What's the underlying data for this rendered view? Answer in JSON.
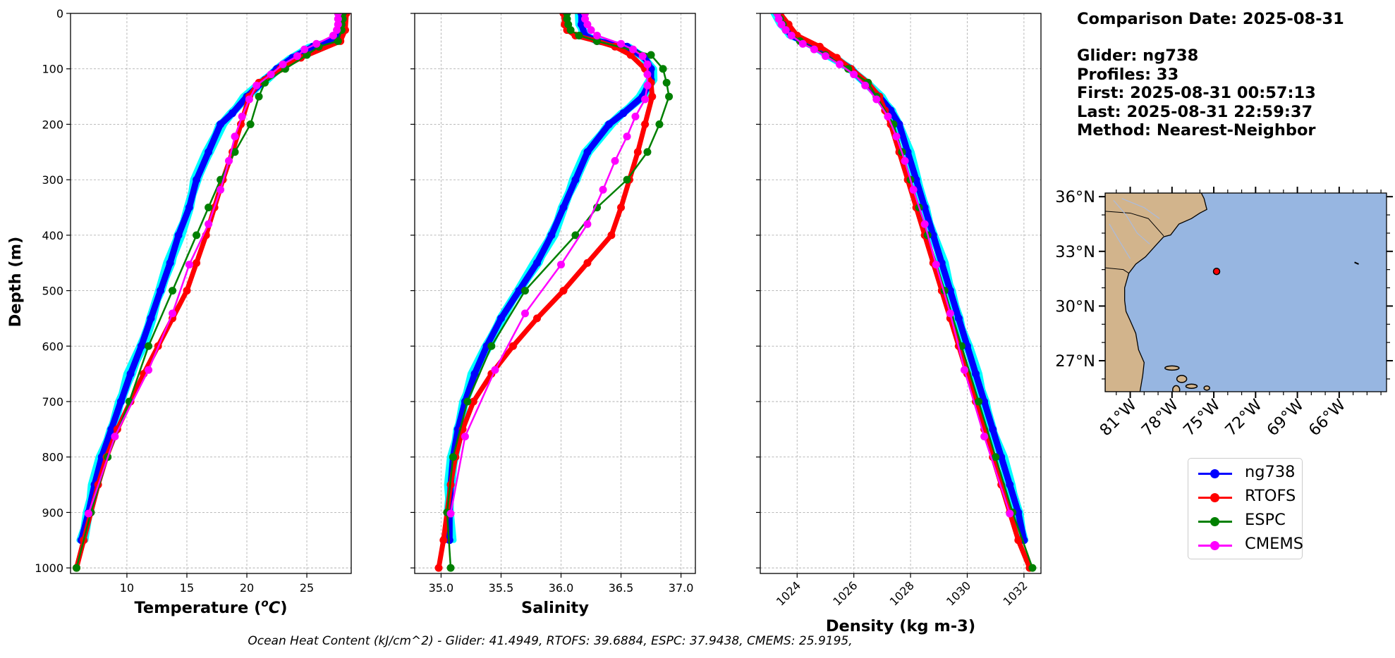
{
  "info": {
    "comparison_date": "Comparison Date: 2025-08-31",
    "glider": "Glider: ng738",
    "profiles": "Profiles: 33",
    "first": "First: 2025-08-31 00:57:13",
    "last": "Last: 2025-08-31 22:59:37",
    "method": "Method: Nearest-Neighbor"
  },
  "footer": "Ocean Heat Content (kJ/cm^2) - Glider: 41.4949,  RTOFS: 39.6884,  ESPC: 37.9438,  CMEMS: 25.9195,",
  "colors": {
    "glider": "#0000ff",
    "glider_individual": "#00ffff",
    "rtofs": "#ff0000",
    "espc": "#008000",
    "cmems": "#ff00ff",
    "land": "#d2b48c",
    "ocean": "#97b6e1",
    "river": "#aabbdd"
  },
  "legend": [
    {
      "name": "ng738",
      "color": "#0000ff"
    },
    {
      "name": "RTOFS",
      "color": "#ff0000"
    },
    {
      "name": "ESPC",
      "color": "#008000"
    },
    {
      "name": "CMEMS",
      "color": "#ff00ff"
    }
  ],
  "chart_data": [
    {
      "type": "line",
      "xlabel": "Temperature (°C)",
      "ylabel": "Depth (m)",
      "xlim": [
        5.3,
        28.7
      ],
      "ylim": [
        1010,
        0
      ],
      "xticks": [
        10,
        15,
        20,
        25
      ],
      "yticks": [
        0,
        100,
        200,
        300,
        400,
        500,
        600,
        700,
        800,
        900,
        1000
      ],
      "grid": true,
      "series": [
        {
          "name": "ng738",
          "depth": [
            0,
            20,
            40,
            50,
            60,
            80,
            100,
            120,
            150,
            180,
            200,
            250,
            300,
            350,
            400,
            450,
            500,
            550,
            600,
            650,
            700,
            750,
            800,
            850,
            900,
            950
          ],
          "values": [
            28.0,
            27.9,
            27.6,
            27.0,
            25.5,
            23.8,
            22.5,
            21.5,
            20.0,
            18.8,
            17.8,
            16.8,
            15.8,
            15.2,
            14.3,
            13.6,
            12.8,
            12.0,
            11.2,
            10.3,
            9.5,
            8.7,
            7.9,
            7.3,
            6.8,
            6.2
          ]
        },
        {
          "name": "RTOFS",
          "depth": [
            0,
            30,
            50,
            80,
            100,
            125,
            150,
            200,
            250,
            300,
            350,
            400,
            450,
            500,
            550,
            600,
            650,
            700,
            750,
            800,
            850,
            900,
            950,
            1000
          ],
          "values": [
            28.3,
            28.2,
            27.8,
            24.5,
            22.8,
            21.0,
            20.2,
            19.5,
            18.8,
            18.0,
            17.3,
            16.6,
            15.8,
            15.0,
            13.8,
            12.6,
            11.4,
            10.3,
            9.2,
            8.3,
            7.6,
            7.0,
            6.4,
            5.8
          ]
        },
        {
          "name": "ESPC",
          "depth": [
            0,
            10,
            20,
            30,
            50,
            60,
            75,
            100,
            125,
            150,
            200,
            250,
            300,
            350,
            400,
            500,
            600,
            700,
            800,
            900,
            1000
          ],
          "values": [
            28.0,
            28.0,
            27.9,
            27.9,
            27.6,
            26.0,
            25.0,
            23.2,
            21.5,
            21.0,
            20.3,
            19.0,
            17.8,
            16.8,
            15.8,
            13.8,
            11.8,
            10.2,
            8.4,
            7.0,
            5.8
          ]
        },
        {
          "name": "CMEMS",
          "depth": [
            0,
            10,
            20,
            30,
            40,
            55,
            65,
            77,
            92,
            110,
            130,
            155,
            186,
            222,
            266,
            318,
            380,
            453,
            541,
            643,
            763,
            902
          ],
          "values": [
            27.6,
            27.6,
            27.6,
            27.5,
            27.2,
            25.8,
            24.8,
            24.2,
            23.0,
            22.0,
            20.8,
            20.2,
            19.6,
            19.0,
            18.5,
            17.8,
            16.8,
            15.2,
            13.8,
            11.8,
            9.0,
            6.8
          ]
        }
      ]
    },
    {
      "type": "line",
      "xlabel": "Salinity",
      "xlim": [
        34.78,
        37.12
      ],
      "ylim": [
        1010,
        0
      ],
      "xticks": [
        35.0,
        35.5,
        36.0,
        36.5,
        37.0
      ],
      "grid": true,
      "series": [
        {
          "name": "ng738",
          "depth": [
            0,
            20,
            40,
            50,
            60,
            80,
            100,
            120,
            150,
            180,
            200,
            250,
            300,
            350,
            400,
            450,
            500,
            550,
            600,
            650,
            700,
            750,
            800,
            850,
            900,
            950
          ],
          "values": [
            36.17,
            36.17,
            36.2,
            36.3,
            36.55,
            36.7,
            36.75,
            36.75,
            36.68,
            36.52,
            36.4,
            36.22,
            36.12,
            36.02,
            35.92,
            35.8,
            35.65,
            35.5,
            35.38,
            35.28,
            35.2,
            35.14,
            35.1,
            35.08,
            35.07,
            35.07
          ]
        },
        {
          "name": "RTOFS",
          "depth": [
            0,
            20,
            30,
            40,
            50,
            60,
            75,
            100,
            125,
            150,
            200,
            250,
            300,
            350,
            400,
            450,
            500,
            550,
            600,
            650,
            700,
            750,
            800,
            850,
            900,
            950,
            1000
          ],
          "values": [
            36.02,
            36.03,
            36.05,
            36.12,
            36.3,
            36.45,
            36.58,
            36.7,
            36.75,
            36.76,
            36.7,
            36.64,
            36.57,
            36.5,
            36.42,
            36.22,
            36.02,
            35.8,
            35.6,
            35.42,
            35.27,
            35.18,
            35.12,
            35.08,
            35.05,
            35.02,
            34.98
          ]
        },
        {
          "name": "ESPC",
          "depth": [
            0,
            10,
            20,
            30,
            40,
            50,
            75,
            100,
            125,
            150,
            200,
            250,
            300,
            350,
            400,
            500,
            600,
            700,
            800,
            900,
            1000
          ],
          "values": [
            36.05,
            36.05,
            36.06,
            36.08,
            36.15,
            36.3,
            36.75,
            36.85,
            36.88,
            36.9,
            36.82,
            36.72,
            36.55,
            36.3,
            36.12,
            35.7,
            35.42,
            35.22,
            35.1,
            35.05,
            35.08
          ]
        },
        {
          "name": "CMEMS",
          "depth": [
            0,
            10,
            20,
            30,
            40,
            55,
            65,
            77,
            92,
            110,
            130,
            155,
            186,
            222,
            266,
            318,
            380,
            453,
            541,
            643,
            763,
            902
          ],
          "values": [
            36.2,
            36.2,
            36.22,
            36.25,
            36.3,
            36.5,
            36.6,
            36.68,
            36.72,
            36.72,
            36.72,
            36.7,
            36.62,
            36.55,
            36.45,
            36.35,
            36.22,
            36.0,
            35.7,
            35.45,
            35.2,
            35.08
          ]
        }
      ]
    },
    {
      "type": "line",
      "xlabel": "Density (kg m-3)",
      "xlim": [
        1022.7,
        1032.6
      ],
      "ylim": [
        1010,
        0
      ],
      "xticks": [
        1024,
        1026,
        1028,
        1030,
        1032
      ],
      "grid": true,
      "series": [
        {
          "name": "ng738",
          "depth": [
            0,
            20,
            40,
            60,
            80,
            100,
            125,
            150,
            175,
            200,
            250,
            300,
            350,
            400,
            450,
            500,
            550,
            600,
            650,
            700,
            750,
            800,
            850,
            900,
            950
          ],
          "values": [
            1023.3,
            1023.5,
            1023.8,
            1024.6,
            1025.3,
            1025.9,
            1026.4,
            1026.9,
            1027.3,
            1027.6,
            1027.9,
            1028.2,
            1028.5,
            1028.8,
            1029.1,
            1029.4,
            1029.7,
            1030.0,
            1030.3,
            1030.6,
            1030.9,
            1031.2,
            1031.5,
            1031.8,
            1032.0
          ]
        },
        {
          "name": "RTOFS",
          "depth": [
            0,
            20,
            40,
            60,
            80,
            100,
            125,
            150,
            175,
            200,
            250,
            300,
            350,
            400,
            450,
            500,
            550,
            600,
            650,
            700,
            750,
            800,
            850,
            900,
            950,
            1000
          ],
          "values": [
            1023.4,
            1023.7,
            1024.0,
            1024.8,
            1025.4,
            1025.9,
            1026.5,
            1026.9,
            1027.1,
            1027.3,
            1027.6,
            1027.9,
            1028.2,
            1028.5,
            1028.8,
            1029.1,
            1029.4,
            1029.7,
            1030.0,
            1030.3,
            1030.6,
            1030.9,
            1031.2,
            1031.5,
            1031.8,
            1032.2
          ]
        },
        {
          "name": "ESPC",
          "depth": [
            0,
            10,
            20,
            30,
            50,
            75,
            100,
            125,
            150,
            200,
            250,
            300,
            350,
            400,
            500,
            600,
            700,
            800,
            900,
            1000
          ],
          "values": [
            1023.3,
            1023.4,
            1023.5,
            1023.6,
            1024.1,
            1025.0,
            1025.8,
            1026.5,
            1026.8,
            1027.4,
            1027.7,
            1028.0,
            1028.3,
            1028.6,
            1029.2,
            1029.8,
            1030.4,
            1031.0,
            1031.6,
            1032.3
          ]
        },
        {
          "name": "CMEMS",
          "depth": [
            0,
            10,
            20,
            30,
            40,
            55,
            65,
            77,
            92,
            110,
            130,
            155,
            186,
            222,
            266,
            318,
            380,
            453,
            541,
            643,
            763,
            902
          ],
          "values": [
            1023.3,
            1023.35,
            1023.45,
            1023.6,
            1023.8,
            1024.2,
            1024.6,
            1025.0,
            1025.5,
            1026.0,
            1026.4,
            1026.8,
            1027.2,
            1027.5,
            1027.8,
            1028.1,
            1028.5,
            1028.9,
            1029.4,
            1029.9,
            1030.6,
            1031.5
          ]
        }
      ]
    },
    {
      "type": "map",
      "lon_range": [
        -82.8,
        -62.6
      ],
      "lat_range": [
        25.3,
        36.2
      ],
      "xticks": [
        "81°W",
        "78°W",
        "75°W",
        "72°W",
        "69°W",
        "66°W"
      ],
      "xtick_values": [
        -81,
        -78,
        -75,
        -72,
        -69,
        -66
      ],
      "yticks": [
        "36°N",
        "33°N",
        "30°N",
        "27°N"
      ],
      "ytick_values": [
        36,
        33,
        30,
        27
      ],
      "glider_position": {
        "lon": -74.8,
        "lat": 31.9
      }
    }
  ]
}
